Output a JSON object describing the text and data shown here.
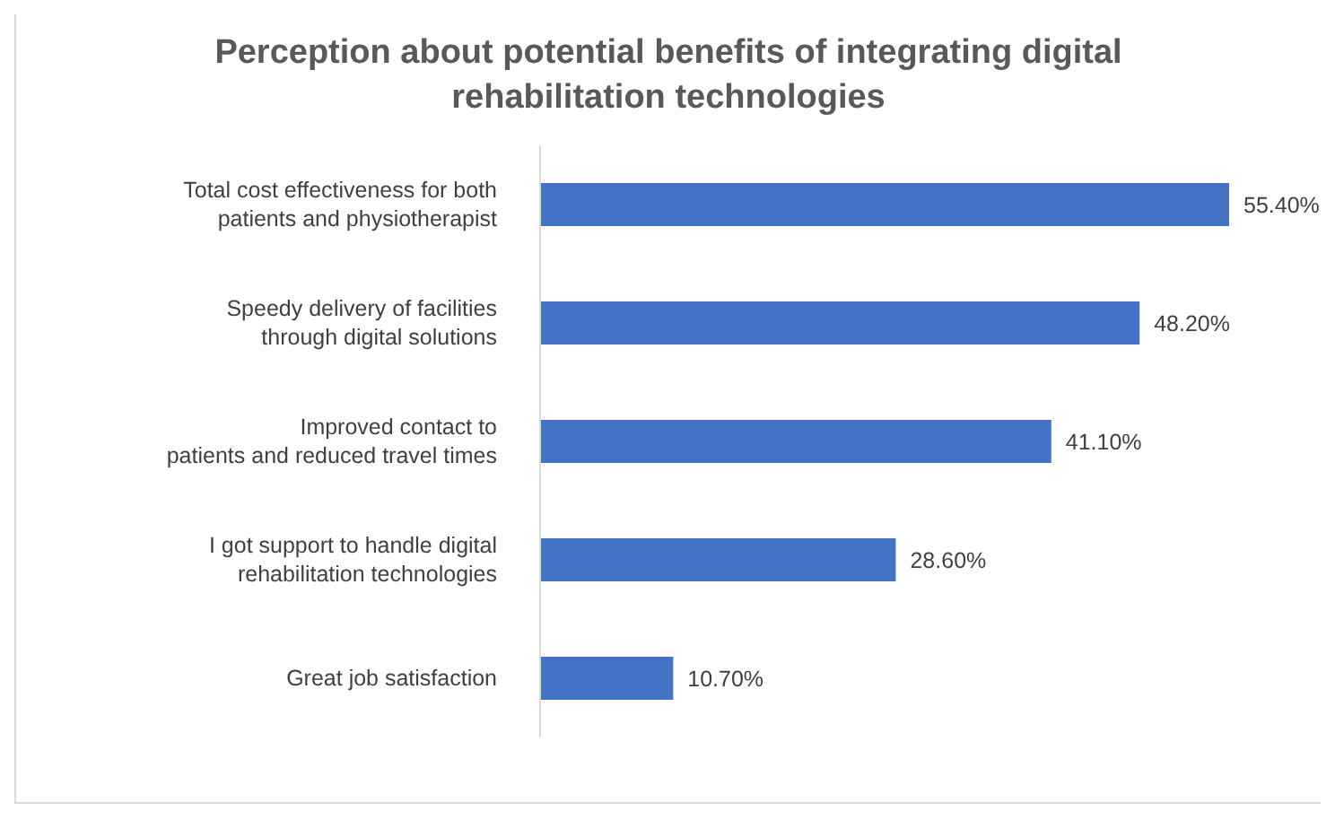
{
  "chart_data": {
    "type": "bar",
    "orientation": "horizontal",
    "tick_labels": "y",
    "title": "Perception about potential benefits of integrating digital\nrehabilitation technologies",
    "categories": [
      "Total cost effectiveness for both\npatients and physiotherapist",
      "Speedy delivery of facilities\nthrough digital solutions",
      "Improved contact to\npatients and reduced travel times",
      "I got support to handle digital\nrehabilitation technologies",
      "Great job satisfaction"
    ],
    "values": [
      55.4,
      48.2,
      41.1,
      28.6,
      10.7
    ],
    "value_labels": [
      "55.40%",
      "48.20%",
      "41.10%",
      "28.60%",
      "10.70%"
    ],
    "color": "#4472c4"
  }
}
